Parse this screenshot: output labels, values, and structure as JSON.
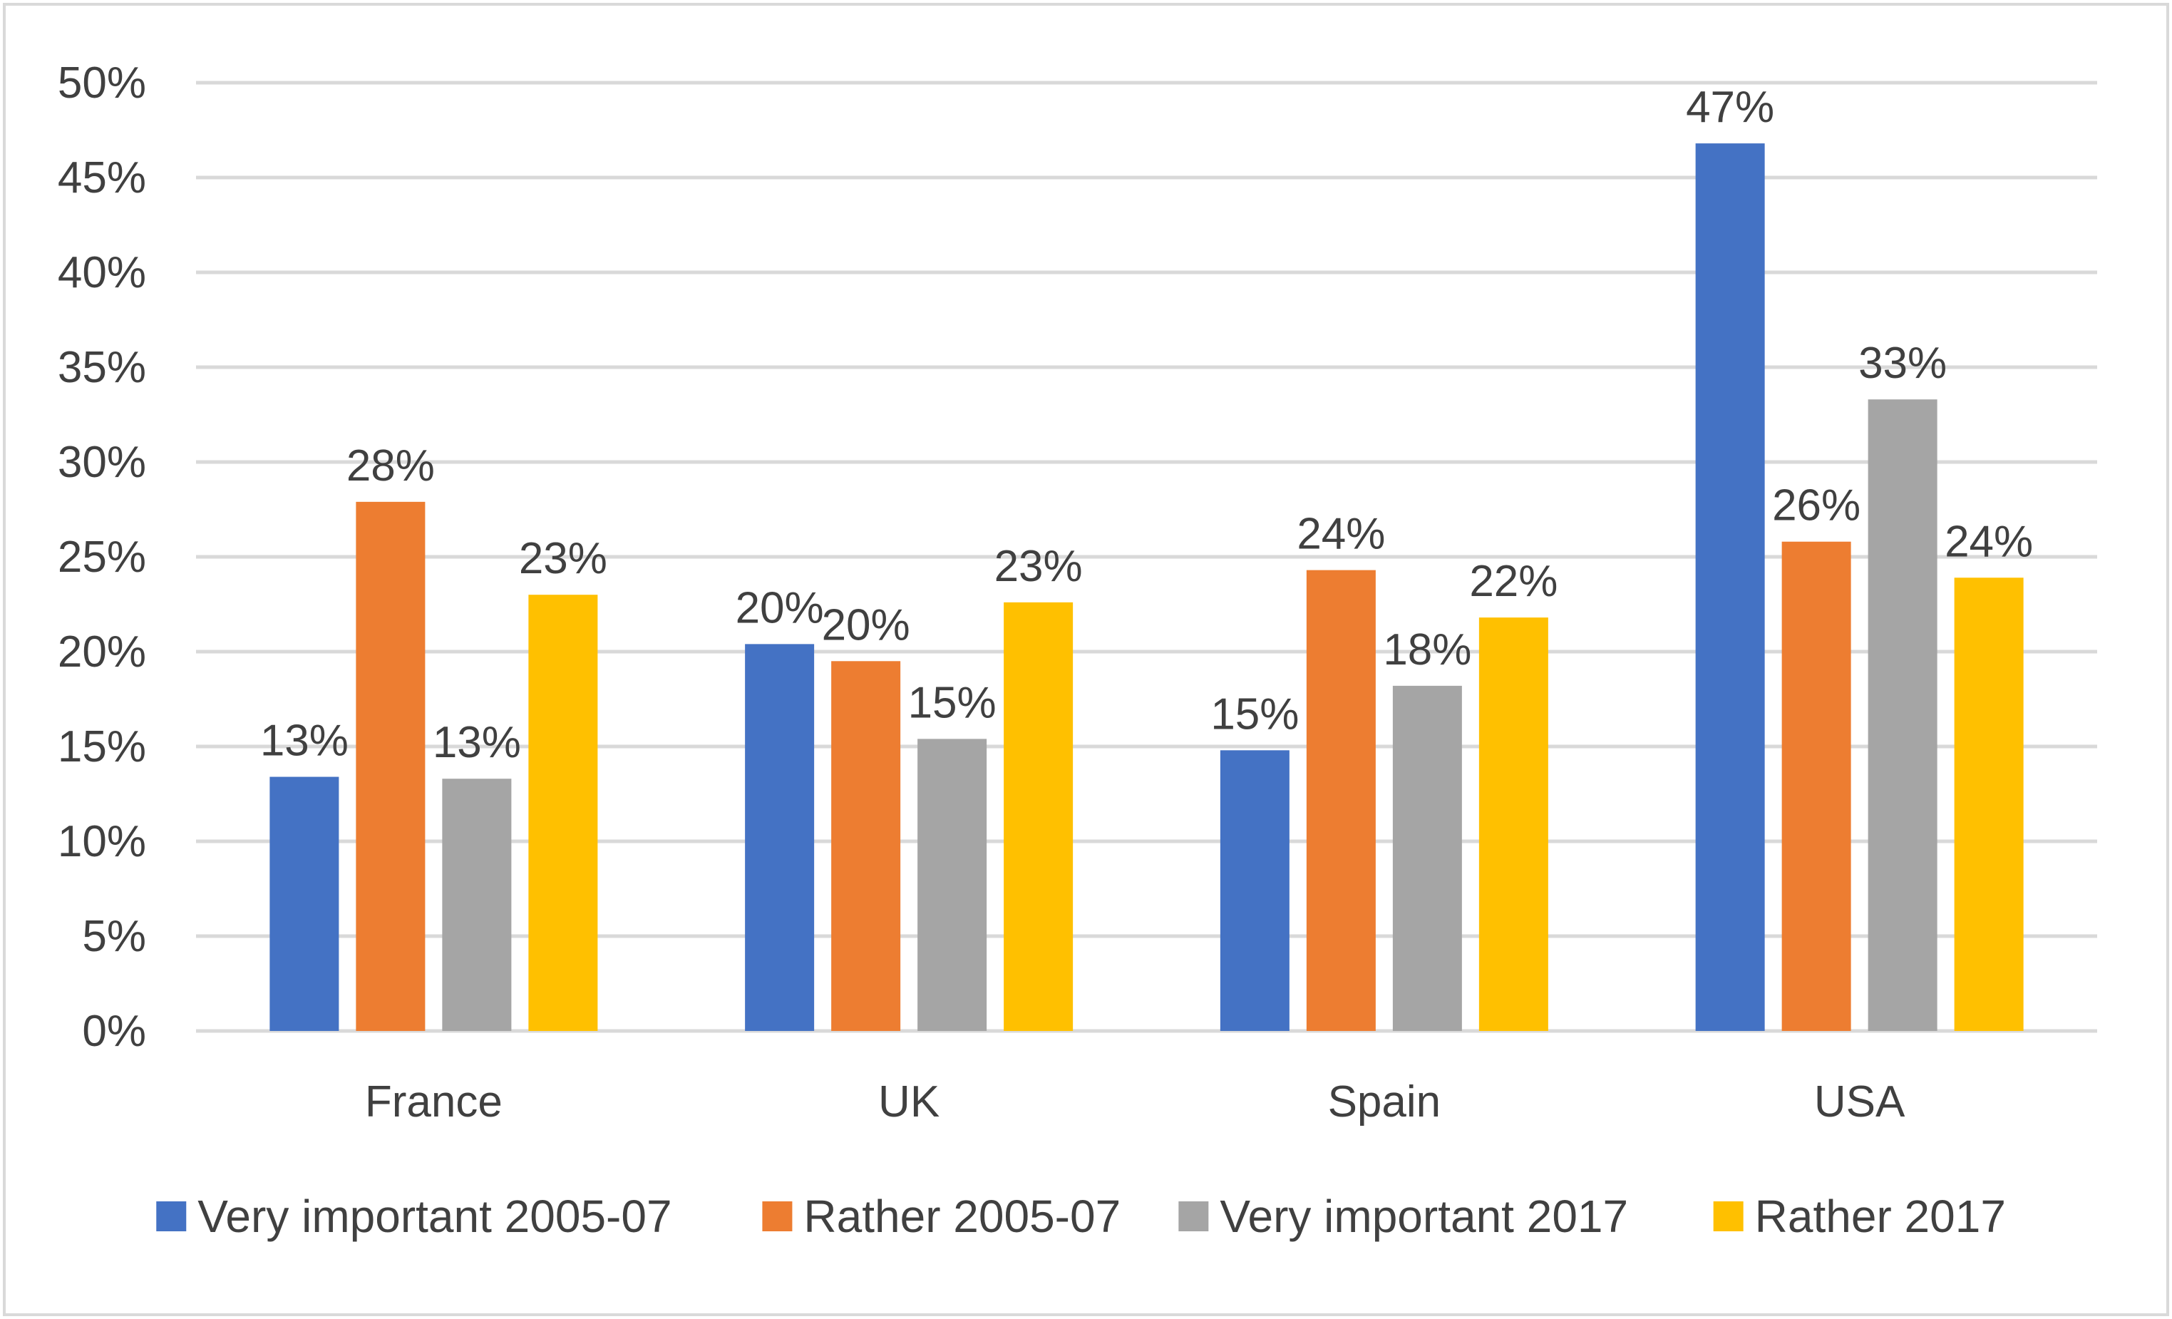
{
  "chart_data": {
    "type": "bar",
    "title": "",
    "xlabel": "",
    "ylabel": "",
    "ylim": [
      0,
      0.5
    ],
    "yticks": [
      0,
      0.05,
      0.1,
      0.15,
      0.2,
      0.25,
      0.3,
      0.35,
      0.4,
      0.45,
      0.5
    ],
    "ytick_labels": [
      "0%",
      "5%",
      "10%",
      "15%",
      "20%",
      "25%",
      "30%",
      "35%",
      "40%",
      "45%",
      "50%"
    ],
    "grid": true,
    "legend_position": "bottom",
    "categories": [
      "France",
      "UK",
      "Spain",
      "USA"
    ],
    "series": [
      {
        "name": "Very important 2005-07",
        "color": "#4472C4",
        "values": [
          0.134,
          0.204,
          0.148,
          0.468
        ],
        "labels": [
          "13%",
          "20%",
          "15%",
          "47%"
        ]
      },
      {
        "name": "Rather 2005-07",
        "color": "#ED7D31",
        "values": [
          0.279,
          0.195,
          0.243,
          0.258
        ],
        "labels": [
          "28%",
          "20%",
          "24%",
          "26%"
        ]
      },
      {
        "name": "Very important 2017",
        "color": "#A5A5A5",
        "values": [
          0.133,
          0.154,
          0.182,
          0.333
        ],
        "labels": [
          "13%",
          "15%",
          "18%",
          "33%"
        ]
      },
      {
        "name": "Rather 2017",
        "color": "#FFC000",
        "values": [
          0.23,
          0.226,
          0.218,
          0.239
        ],
        "labels": [
          "23%",
          "23%",
          "22%",
          "24%"
        ]
      }
    ]
  },
  "colors": {
    "grid": "#D9D9D9",
    "border": "#D9D9D9",
    "text": "#404040"
  }
}
